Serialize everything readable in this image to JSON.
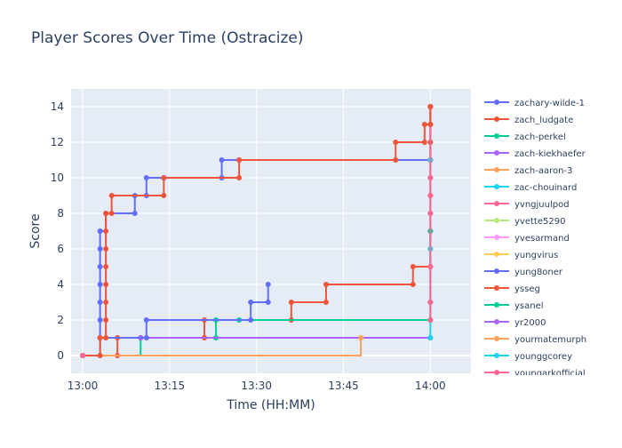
{
  "chart_data": {
    "type": "line",
    "title": "Player Scores Over Time (Ostracize)",
    "xlabel": "Time (HH:MM)",
    "ylabel": "Score",
    "x_axis": {
      "start": "12:58",
      "end": "14:07",
      "ticks": [
        "13:00",
        "13:15",
        "13:30",
        "13:45",
        "14:00"
      ]
    },
    "y_axis": {
      "range": [
        -1,
        15
      ],
      "ticks": [
        0,
        2,
        4,
        6,
        8,
        10,
        12,
        14
      ]
    },
    "grid": true,
    "line_shape": "step",
    "legend_position": "right",
    "legend_scrollable": true,
    "colors": {
      "plot_bg": "#e5ecf6",
      "grid": "#ffffff",
      "text": "#2a3f5f"
    },
    "series": [
      {
        "name": "zachary-wilde-1",
        "color": "#636efa",
        "points": [
          [
            "13:00",
            0
          ],
          [
            "13:03",
            1
          ],
          [
            "13:03",
            2
          ],
          [
            "13:03",
            3
          ],
          [
            "13:03",
            4
          ],
          [
            "13:03",
            5
          ],
          [
            "13:03",
            6
          ],
          [
            "13:03",
            7
          ],
          [
            "13:04",
            8
          ],
          [
            "13:09",
            8
          ],
          [
            "13:09",
            9
          ],
          [
            "13:11",
            9
          ],
          [
            "13:11",
            10
          ],
          [
            "13:14",
            10
          ],
          [
            "13:14",
            10
          ],
          [
            "13:24",
            10
          ],
          [
            "13:24",
            11
          ],
          [
            "13:27",
            11
          ],
          [
            "14:00",
            11
          ],
          [
            "14:00",
            12
          ],
          [
            "14:00",
            13
          ],
          [
            "14:00",
            14
          ]
        ]
      },
      {
        "name": "zach_ludgate",
        "color": "#ef553b",
        "points": [
          [
            "13:00",
            0
          ],
          [
            "13:06",
            0
          ],
          [
            "13:06",
            1
          ],
          [
            "13:10",
            1
          ],
          [
            "13:21",
            1
          ],
          [
            "13:21",
            2
          ],
          [
            "13:36",
            2
          ],
          [
            "13:36",
            3
          ],
          [
            "13:42",
            3
          ],
          [
            "13:42",
            4
          ],
          [
            "13:57",
            4
          ],
          [
            "13:57",
            5
          ],
          [
            "14:00",
            5
          ],
          [
            "14:00",
            6
          ],
          [
            "14:00",
            7
          ],
          [
            "14:00",
            8
          ],
          [
            "14:00",
            9
          ],
          [
            "14:00",
            10
          ],
          [
            "14:00",
            11
          ],
          [
            "14:00",
            12
          ],
          [
            "14:00",
            13
          ],
          [
            "14:00",
            14
          ]
        ]
      },
      {
        "name": "zach-perkel",
        "color": "#00cc96",
        "points": [
          [
            "13:00",
            0
          ],
          [
            "13:10",
            1
          ],
          [
            "13:23",
            1
          ],
          [
            "13:23",
            2
          ],
          [
            "13:27",
            2
          ],
          [
            "14:00",
            2
          ],
          [
            "14:00",
            3
          ],
          [
            "14:00",
            7
          ]
        ]
      },
      {
        "name": "zach-kiekhaefer",
        "color": "#ab63fa",
        "points": [
          [
            "13:10",
            1
          ],
          [
            "14:00",
            1
          ]
        ]
      },
      {
        "name": "zach-aaron-3",
        "color": "#ffa15a",
        "points": [
          [
            "13:00",
            0
          ],
          [
            "13:48",
            1
          ]
        ]
      },
      {
        "name": "zac-chouinard",
        "color": "#19d3f3",
        "points": [
          [
            "14:00",
            1
          ],
          [
            "14:00",
            3
          ],
          [
            "14:00",
            6
          ],
          [
            "14:00",
            11
          ]
        ]
      },
      {
        "name": "yvngjuulpod",
        "color": "#ff6692",
        "points": [
          [
            "14:00",
            2
          ],
          [
            "14:00",
            3
          ],
          [
            "14:00",
            5
          ],
          [
            "14:00",
            8
          ],
          [
            "14:00",
            9
          ],
          [
            "14:00",
            10
          ],
          [
            "14:00",
            13
          ],
          [
            "14:00",
            14
          ]
        ]
      },
      {
        "name": "yvette5290",
        "color": "#b6e880",
        "points": [
          [
            "13:00",
            0
          ]
        ]
      },
      {
        "name": "yvesarmand",
        "color": "#ff97ff",
        "points": [
          [
            "13:00",
            0
          ]
        ]
      },
      {
        "name": "yungvirus",
        "color": "#fecb52",
        "points": [
          [
            "13:00",
            0
          ]
        ]
      },
      {
        "name": "yung8oner",
        "color": "#636efa",
        "points": [
          [
            "13:00",
            0
          ],
          [
            "13:03",
            1
          ],
          [
            "13:11",
            1
          ],
          [
            "13:11",
            2
          ],
          [
            "13:29",
            2
          ],
          [
            "13:29",
            3
          ],
          [
            "13:32",
            3
          ],
          [
            "13:32",
            4
          ]
        ]
      },
      {
        "name": "ysseg",
        "color": "#ef553b",
        "points": [
          [
            "13:00",
            0
          ],
          [
            "13:03",
            0
          ],
          [
            "13:03",
            1
          ],
          [
            "13:04",
            1
          ],
          [
            "13:04",
            2
          ],
          [
            "13:04",
            3
          ],
          [
            "13:04",
            4
          ],
          [
            "13:04",
            5
          ],
          [
            "13:04",
            6
          ],
          [
            "13:04",
            7
          ],
          [
            "13:04",
            8
          ],
          [
            "13:05",
            8
          ],
          [
            "13:05",
            9
          ],
          [
            "13:14",
            9
          ],
          [
            "13:14",
            10
          ],
          [
            "13:27",
            10
          ],
          [
            "13:27",
            11
          ],
          [
            "13:54",
            11
          ],
          [
            "13:54",
            12
          ],
          [
            "13:59",
            12
          ],
          [
            "13:59",
            13
          ],
          [
            "14:00",
            13
          ],
          [
            "14:00",
            14
          ]
        ]
      },
      {
        "name": "ysanel",
        "color": "#00cc96",
        "points": [
          [
            "13:00",
            0
          ]
        ]
      },
      {
        "name": "yr2000",
        "color": "#ab63fa",
        "points": [
          [
            "13:00",
            0
          ]
        ]
      },
      {
        "name": "yourmatemurph",
        "color": "#ffa15a",
        "points": [
          [
            "13:00",
            0
          ]
        ]
      },
      {
        "name": "younggcorey",
        "color": "#19d3f3",
        "points": [
          [
            "13:00",
            0
          ]
        ]
      },
      {
        "name": "youngarkofficial",
        "color": "#ff6692",
        "points": [
          [
            "13:00",
            0
          ]
        ]
      }
    ]
  }
}
